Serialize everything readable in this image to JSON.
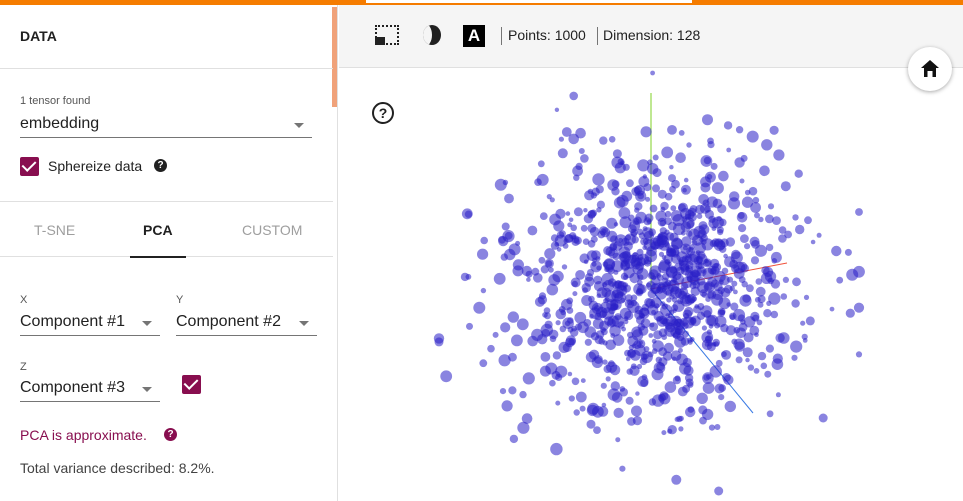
{
  "left_panel": {
    "section_title": "DATA",
    "tensor_count": "1 tensor found",
    "tensor_select": "embedding",
    "spherize_label": "Sphereize data",
    "spherize_checked": true,
    "tabs": [
      "T-SNE",
      "PCA",
      "CUSTOM"
    ],
    "active_tab": "PCA",
    "x_label": "X",
    "x_value": "Component #1",
    "y_label": "Y",
    "y_value": "Component #2",
    "z_label": "Z",
    "z_value": "Component #3",
    "z_checked": true,
    "pca_approx": "PCA is approximate.",
    "variance_text": "Total variance described: 8.2%."
  },
  "toolbar": {
    "points": "Points: 1000",
    "dimension": "Dimension: 128",
    "icons": [
      "select-rectangle-icon",
      "night-mode-icon",
      "label-toggle-icon",
      "home-icon",
      "help-icon"
    ]
  },
  "colors": {
    "accent_top": "#f57c00",
    "checkbox": "#880e4f",
    "point_fill": "#2a1fc7",
    "axis_x": "#f0513a",
    "axis_y": "#7fd124",
    "axis_z": "#3a7ae4"
  }
}
